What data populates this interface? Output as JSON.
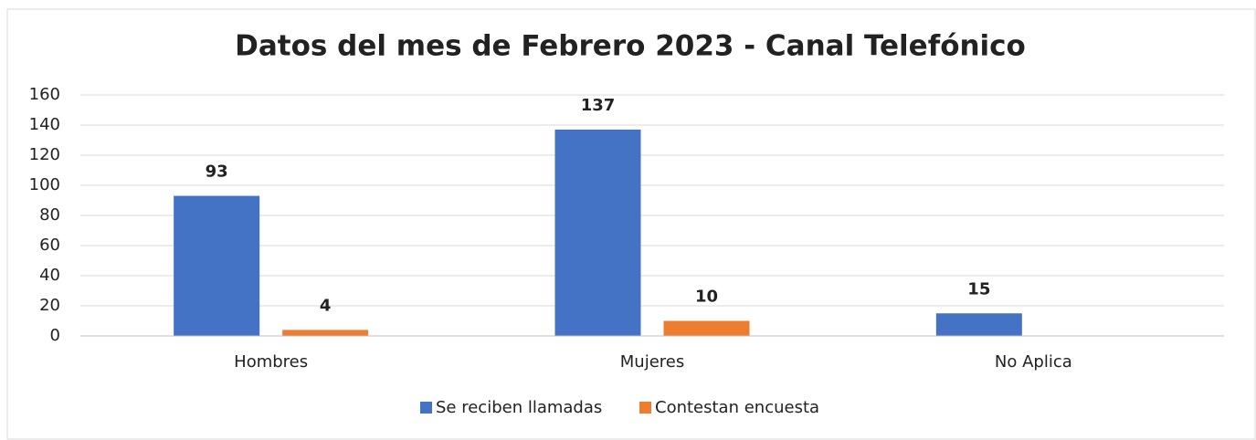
{
  "chart_data": {
    "type": "bar",
    "title": "Datos del mes de Febrero 2023 - Canal Telefónico",
    "categories": [
      "Hombres",
      "Mujeres",
      "No Aplica"
    ],
    "series": [
      {
        "name": "Se reciben llamadas",
        "color": "#4472c4",
        "values": [
          93,
          137,
          15
        ]
      },
      {
        "name": "Contestan encuesta",
        "color": "#ed7d31",
        "values": [
          4,
          10,
          null
        ]
      }
    ],
    "ylim": [
      0,
      160
    ],
    "yticks": [
      0,
      20,
      40,
      60,
      80,
      100,
      120,
      140,
      160
    ],
    "grid": true,
    "legend": "bottom"
  }
}
